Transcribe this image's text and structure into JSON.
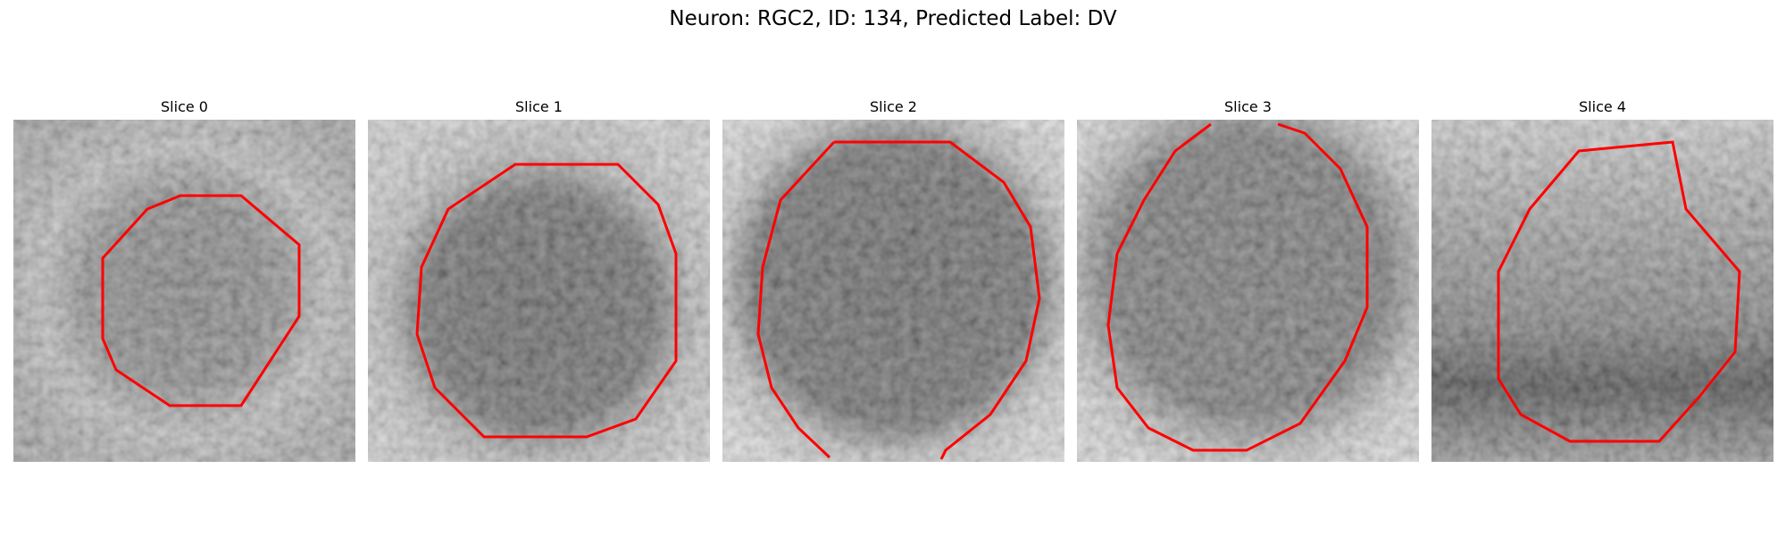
{
  "title": "Neuron: RGC2, ID: 134, Predicted Label: DV",
  "panels": [
    {
      "title": "Slice 0",
      "outline_color": "#ff0000"
    },
    {
      "title": "Slice 1",
      "outline_color": "#ff0000"
    },
    {
      "title": "Slice 2",
      "outline_color": "#ff0000"
    },
    {
      "title": "Slice 3",
      "outline_color": "#ff0000"
    },
    {
      "title": "Slice 4",
      "outline_color": "#ff0000"
    }
  ]
}
